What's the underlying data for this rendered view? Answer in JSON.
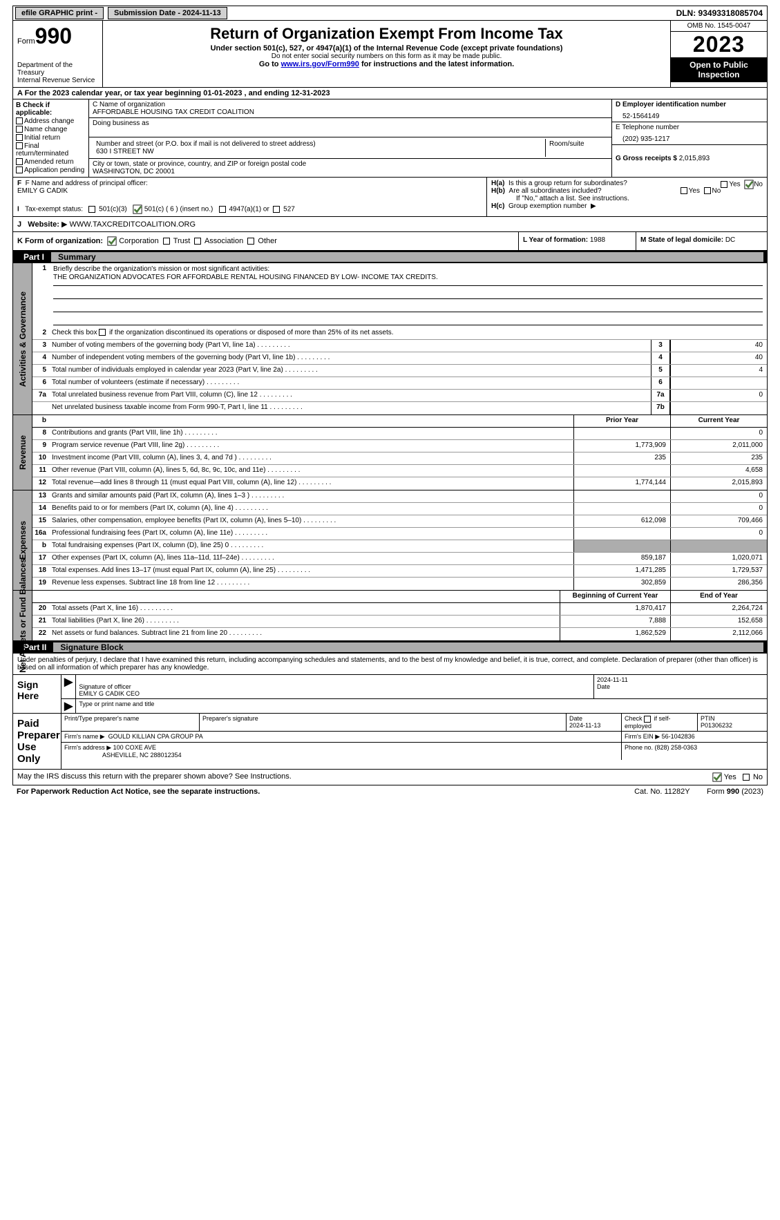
{
  "topbar": {
    "efile": "efile GRAPHIC print -",
    "submission": "Submission Date - 2024-11-13",
    "dln": "DLN: 93493318085704"
  },
  "header": {
    "form_word": "Form",
    "form_num": "990",
    "title": "Return of Organization Exempt From Income Tax",
    "sub": "Under section 501(c), 527, or 4947(a)(1) of the Internal Revenue Code (except private foundations)",
    "ssn": "Do not enter social security numbers on this form as it may be made public.",
    "goto_pre": "Go to ",
    "goto_link": "www.irs.gov/Form990",
    "goto_post": " for instructions and the latest information.",
    "dept": "Department of the Treasury",
    "irs": "Internal Revenue Service",
    "omb": "OMB No. 1545-0047",
    "year": "2023",
    "inspection": "Open to Public Inspection"
  },
  "section_a": {
    "period_pre": "A For the 2023 calendar year, or tax year beginning ",
    "period_begin": "01-01-2023",
    "period_mid": "  , and ending ",
    "period_end": "12-31-2023"
  },
  "section_b": {
    "label": "B Check if applicable:",
    "items": [
      "Address change",
      "Name change",
      "Initial return",
      "Final return/terminated",
      "Amended return",
      "Application pending"
    ]
  },
  "section_c": {
    "name_lbl": "C Name of organization",
    "name": "AFFORDABLE HOUSING TAX CREDIT COALITION",
    "dba_lbl": "Doing business as",
    "addr_lbl": "Number and street (or P.O. box if mail is not delivered to street address)",
    "room_lbl": "Room/suite",
    "addr": "630 I STREET NW",
    "city_lbl": "City or town, state or province, country, and ZIP or foreign postal code",
    "city": "WASHINGTON, DC  20001"
  },
  "section_d": {
    "ein_lbl": "D Employer identification number",
    "ein": "52-1564149",
    "phone_lbl": "E Telephone number",
    "phone": "(202) 935-1217",
    "receipts_lbl": "G Gross receipts $ ",
    "receipts": "2,015,893"
  },
  "section_f": {
    "lbl": "F  Name and address of principal officer:",
    "name": "EMILY G CADIK"
  },
  "section_h": {
    "a_lbl": "H(a)  Is this a group return for subordinates?",
    "b_lbl": "H(b)  Are all subordinates included?",
    "b_note": "If \"No,\" attach a list. See instructions.",
    "c_lbl": "H(c)  Group exemption number  ",
    "yes": "Yes",
    "no": "No"
  },
  "section_i": {
    "lbl": "I   Tax-exempt status:",
    "opts": [
      "501(c)(3)",
      "501(c) ( 6 ) (insert no.)",
      "4947(a)(1) or",
      "527"
    ]
  },
  "section_j": {
    "lbl": "J   Website: ",
    "url": "WWW.TAXCREDITCOALITION.ORG"
  },
  "section_k": {
    "lbl": "K Form of organization:",
    "opts": [
      "Corporation",
      "Trust",
      "Association",
      "Other"
    ]
  },
  "section_l": {
    "lbl": "L Year of formation: ",
    "val": "1988"
  },
  "section_m": {
    "lbl": "M State of legal domicile: ",
    "val": "DC"
  },
  "part1": {
    "num": "Part I",
    "title": "Summary",
    "line1_lbl": "Briefly describe the organization's mission or most significant activities:",
    "line1_val": "THE ORGANIZATION ADVOCATES FOR AFFORDABLE RENTAL HOUSING FINANCED BY LOW- INCOME TAX CREDITS.",
    "line2": "Check this box      if the organization discontinued its operations or disposed of more than 25% of its net assets.",
    "gov_label": "Activities & Governance",
    "rev_label": "Revenue",
    "exp_label": "Expenses",
    "net_label": "Net Assets or Fund Balances",
    "rows_gov": [
      {
        "n": "3",
        "d": "Number of voting members of the governing body (Part VI, line 1a)",
        "k": "3",
        "v": "40"
      },
      {
        "n": "4",
        "d": "Number of independent voting members of the governing body (Part VI, line 1b)",
        "k": "4",
        "v": "40"
      },
      {
        "n": "5",
        "d": "Total number of individuals employed in calendar year 2023 (Part V, line 2a)",
        "k": "5",
        "v": "4"
      },
      {
        "n": "6",
        "d": "Total number of volunteers (estimate if necessary)",
        "k": "6",
        "v": ""
      },
      {
        "n": "7a",
        "d": "Total unrelated business revenue from Part VIII, column (C), line 12",
        "k": "7a",
        "v": "0"
      },
      {
        "n": "",
        "d": "Net unrelated business taxable income from Form 990-T, Part I, line 11",
        "k": "7b",
        "v": ""
      }
    ],
    "col_hdr": {
      "b": "b",
      "prior": "Prior Year",
      "current": "Current Year"
    },
    "rows_rev": [
      {
        "n": "8",
        "d": "Contributions and grants (Part VIII, line 1h)",
        "p": "",
        "c": "0"
      },
      {
        "n": "9",
        "d": "Program service revenue (Part VIII, line 2g)",
        "p": "1,773,909",
        "c": "2,011,000"
      },
      {
        "n": "10",
        "d": "Investment income (Part VIII, column (A), lines 3, 4, and 7d )",
        "p": "235",
        "c": "235"
      },
      {
        "n": "11",
        "d": "Other revenue (Part VIII, column (A), lines 5, 6d, 8c, 9c, 10c, and 11e)",
        "p": "",
        "c": "4,658"
      },
      {
        "n": "12",
        "d": "Total revenue—add lines 8 through 11 (must equal Part VIII, column (A), line 12)",
        "p": "1,774,144",
        "c": "2,015,893"
      }
    ],
    "rows_exp": [
      {
        "n": "13",
        "d": "Grants and similar amounts paid (Part IX, column (A), lines 1–3 )",
        "p": "",
        "c": "0"
      },
      {
        "n": "14",
        "d": "Benefits paid to or for members (Part IX, column (A), line 4)",
        "p": "",
        "c": "0"
      },
      {
        "n": "15",
        "d": "Salaries, other compensation, employee benefits (Part IX, column (A), lines 5–10)",
        "p": "612,098",
        "c": "709,466"
      },
      {
        "n": "16a",
        "d": "Professional fundraising fees (Part IX, column (A), line 11e)",
        "p": "",
        "c": "0"
      },
      {
        "n": "b",
        "d": "Total fundraising expenses (Part IX, column (D), line 25) 0",
        "p": "GRAY",
        "c": "GRAY"
      },
      {
        "n": "17",
        "d": "Other expenses (Part IX, column (A), lines 11a–11d, 11f–24e)",
        "p": "859,187",
        "c": "1,020,071"
      },
      {
        "n": "18",
        "d": "Total expenses. Add lines 13–17 (must equal Part IX, column (A), line 25)",
        "p": "1,471,285",
        "c": "1,729,537"
      },
      {
        "n": "19",
        "d": "Revenue less expenses. Subtract line 18 from line 12",
        "p": "302,859",
        "c": "286,356"
      }
    ],
    "net_hdr": {
      "begin": "Beginning of Current Year",
      "end": "End of Year"
    },
    "rows_net": [
      {
        "n": "20",
        "d": "Total assets (Part X, line 16)",
        "p": "1,870,417",
        "c": "2,264,724"
      },
      {
        "n": "21",
        "d": "Total liabilities (Part X, line 26)",
        "p": "7,888",
        "c": "152,658"
      },
      {
        "n": "22",
        "d": "Net assets or fund balances. Subtract line 21 from line 20",
        "p": "1,862,529",
        "c": "2,112,066"
      }
    ]
  },
  "part2": {
    "num": "Part II",
    "title": "Signature Block",
    "intro": "Under penalties of perjury, I declare that I have examined this return, including accompanying schedules and statements, and to the best of my knowledge and belief, it is true, correct, and complete. Declaration of preparer (other than officer) is based on all information of which preparer has any knowledge."
  },
  "sign": {
    "here": "Sign Here",
    "officer_lbl": "Signature of officer",
    "officer": "EMILY G CADIK  CEO",
    "type_lbl": "Type or print name and title",
    "date_lbl": "Date",
    "date": "2024-11-11"
  },
  "preparer": {
    "label": "Paid Preparer Use Only",
    "name_lbl": "Print/Type preparer's name",
    "sig_lbl": "Preparer's signature",
    "date_lbl": "Date",
    "date": "2024-11-13",
    "self_lbl": "Check       if self-employed",
    "ptin_lbl": "PTIN",
    "ptin": "P01306232",
    "firm_name_lbl": "Firm's name   ",
    "firm_name": "GOULD KILLIAN CPA GROUP PA",
    "firm_ein_lbl": "Firm's EIN  ",
    "firm_ein": "56-1042836",
    "firm_addr_lbl": "Firm's address ",
    "firm_addr1": "100 COXE AVE",
    "firm_addr2": "ASHEVILLE, NC  288012354",
    "phone_lbl": "Phone no. ",
    "phone": "(828) 258-0363"
  },
  "discuss": {
    "q": "May the IRS discuss this return with the preparer shown above? See Instructions.",
    "yes": "Yes",
    "no": "No"
  },
  "footer": {
    "pra": "For Paperwork Reduction Act Notice, see the separate instructions.",
    "cat": "Cat. No. 11282Y",
    "form": "Form 990 (2023)"
  }
}
